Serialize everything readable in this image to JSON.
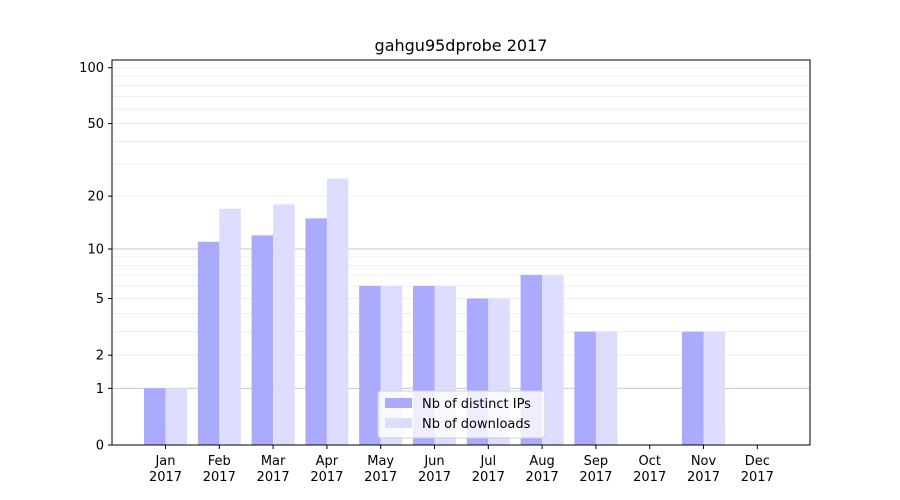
{
  "chart_data": {
    "type": "bar",
    "title": "gahgu95dprobe 2017",
    "xlabel": "",
    "ylabel": "",
    "categories": [
      [
        "Jan",
        "2017"
      ],
      [
        "Feb",
        "2017"
      ],
      [
        "Mar",
        "2017"
      ],
      [
        "Apr",
        "2017"
      ],
      [
        "May",
        "2017"
      ],
      [
        "Jun",
        "2017"
      ],
      [
        "Jul",
        "2017"
      ],
      [
        "Aug",
        "2017"
      ],
      [
        "Sep",
        "2017"
      ],
      [
        "Oct",
        "2017"
      ],
      [
        "Nov",
        "2017"
      ],
      [
        "Dec",
        "2017"
      ]
    ],
    "series": [
      {
        "name": "Nb of distinct IPs",
        "color": "#aaaaff",
        "values": [
          1,
          11,
          12,
          15,
          6,
          6,
          5,
          7,
          3,
          0,
          3,
          0
        ]
      },
      {
        "name": "Nb of downloads",
        "color": "#ddddff",
        "values": [
          1,
          17,
          18,
          25,
          6,
          6,
          5,
          7,
          3,
          0,
          3,
          0
        ]
      }
    ],
    "yscale": "log(1+y)",
    "ylim": [
      0,
      110
    ],
    "yticks": [
      0,
      1,
      2,
      5,
      10,
      20,
      50,
      100
    ],
    "major_grid": [
      1,
      10
    ],
    "minor_grid": [
      2,
      3,
      4,
      5,
      6,
      7,
      8,
      9,
      20,
      30,
      40,
      50,
      60,
      70,
      80,
      90,
      100
    ],
    "legend_position": "bottom-center"
  }
}
